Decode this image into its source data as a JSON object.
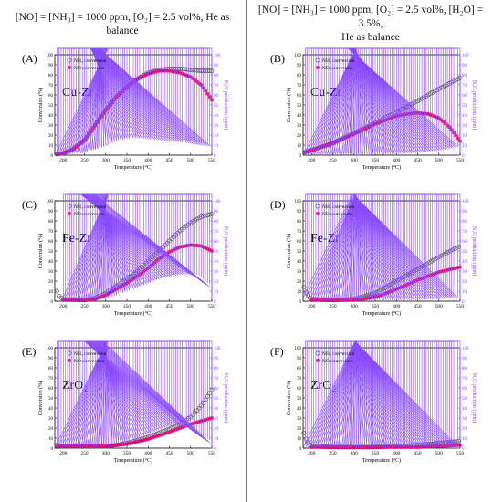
{
  "header": {
    "left": "[NO] = [NH₃] = 1000 ppm, [O₂] = 2.5 vol%, He as balance",
    "right_line1": "[NO] = [NH₃] = 1000 ppm, [O₂] = 2.5 vol%, [H₂O] = 3.5%,",
    "right_line2": "He as balance"
  },
  "axes_text": {
    "xlabel": "Temperature (°C)",
    "ylabel_left": "Conversion (%)",
    "ylabel_right": "N₂O production (ppm)"
  },
  "colors": {
    "nh3": "#555555",
    "no": "#e0007a",
    "n2o": "#8a4bff"
  },
  "chart_data": [
    {
      "type": "scatter",
      "panel": "(A)",
      "catalyst": "Cu-Zr",
      "xlim": [
        180,
        550
      ],
      "ylim": [
        0,
        100
      ],
      "y2lim": [
        0,
        100
      ],
      "xticks": [
        200,
        250,
        300,
        350,
        400,
        450,
        500,
        550
      ],
      "legend": [
        "NH₃ conversion",
        "NO conversion"
      ],
      "series": [
        {
          "name": "NH₃ conversion",
          "axis": "left",
          "marker": "open-circle",
          "x": [
            185,
            200,
            220,
            250,
            275,
            300,
            325,
            350,
            375,
            400,
            425,
            450,
            475,
            500,
            525,
            550
          ],
          "y": [
            1,
            2,
            5,
            15,
            30,
            45,
            58,
            68,
            76,
            82,
            85,
            86,
            86,
            85,
            84,
            84
          ]
        },
        {
          "name": "NO conversion",
          "axis": "left",
          "marker": "filled-circle",
          "x": [
            185,
            200,
            220,
            250,
            275,
            300,
            325,
            350,
            375,
            400,
            425,
            450,
            475,
            500,
            525,
            550
          ],
          "y": [
            1,
            2,
            5,
            15,
            30,
            45,
            58,
            68,
            76,
            81,
            84,
            84,
            82,
            78,
            70,
            55
          ]
        },
        {
          "name": "",
          "axis": "right",
          "marker": "triangle",
          "x": [
            185,
            200,
            250,
            300,
            325,
            350,
            375,
            400,
            425,
            450,
            475,
            500,
            525,
            550
          ],
          "y": [
            0,
            0,
            2,
            8,
            13,
            16,
            17,
            16,
            15,
            14,
            13,
            12,
            10,
            9
          ]
        }
      ]
    },
    {
      "type": "scatter",
      "panel": "(B)",
      "catalyst": "Cu-Zr",
      "xlim": [
        180,
        550
      ],
      "ylim": [
        0,
        100
      ],
      "y2lim": [
        0,
        100
      ],
      "xticks": [
        200,
        250,
        300,
        350,
        400,
        450,
        500,
        550
      ],
      "legend": [
        "NH₃ conversion",
        "NO conversion"
      ],
      "series": [
        {
          "name": "NH₃ conversion",
          "axis": "left",
          "marker": "open-circle",
          "x": [
            185,
            200,
            250,
            300,
            350,
            400,
            450,
            500,
            550
          ],
          "y": [
            3,
            5,
            12,
            22,
            32,
            43,
            54,
            66,
            77
          ]
        },
        {
          "name": "NO conversion",
          "axis": "left",
          "marker": "filled-circle",
          "x": [
            185,
            200,
            250,
            300,
            350,
            400,
            425,
            450,
            475,
            500,
            525,
            550
          ],
          "y": [
            3,
            5,
            12,
            21,
            31,
            39,
            41,
            42,
            41,
            37,
            28,
            14
          ]
        },
        {
          "name": "",
          "axis": "right",
          "marker": "triangle",
          "x": [
            185,
            200,
            250,
            300,
            350,
            400,
            450,
            500,
            525,
            550
          ],
          "y": [
            0,
            0,
            0,
            0,
            0,
            1,
            2,
            4,
            6,
            8
          ]
        }
      ]
    },
    {
      "type": "scatter",
      "panel": "(C)",
      "catalyst": "Fe-Zr",
      "xlim": [
        180,
        550
      ],
      "ylim": [
        0,
        100
      ],
      "y2lim": [
        0,
        100
      ],
      "xticks": [
        200,
        250,
        300,
        350,
        400,
        450,
        500,
        550
      ],
      "legend": [
        "NH₃ conversion",
        "NO conversion"
      ],
      "series": [
        {
          "name": "NH₃ conversion",
          "axis": "left",
          "marker": "open-circle",
          "x": [
            185,
            190,
            200,
            250,
            275,
            300,
            325,
            350,
            375,
            400,
            425,
            450,
            475,
            500,
            525,
            550
          ],
          "y": [
            10,
            5,
            2,
            1,
            3,
            8,
            15,
            22,
            30,
            40,
            50,
            60,
            70,
            78,
            84,
            87
          ]
        },
        {
          "name": "NO conversion",
          "axis": "left",
          "marker": "filled-circle",
          "x": [
            200,
            250,
            275,
            300,
            325,
            350,
            375,
            400,
            425,
            450,
            475,
            500,
            525,
            550
          ],
          "y": [
            1,
            1,
            2,
            6,
            12,
            18,
            25,
            33,
            42,
            49,
            54,
            56,
            55,
            50
          ]
        },
        {
          "name": "",
          "axis": "right",
          "marker": "triangle",
          "x": [
            200,
            250,
            300,
            325,
            350,
            375,
            400,
            425,
            450,
            475,
            500,
            520,
            535,
            550
          ],
          "y": [
            0,
            0,
            2,
            5,
            9,
            13,
            17,
            21,
            24,
            26,
            27,
            24,
            18,
            14
          ]
        }
      ]
    },
    {
      "type": "scatter",
      "panel": "(D)",
      "catalyst": "Fe-Zr",
      "xlim": [
        180,
        550
      ],
      "ylim": [
        0,
        100
      ],
      "y2lim": [
        0,
        100
      ],
      "xticks": [
        200,
        250,
        300,
        350,
        400,
        450,
        500,
        550
      ],
      "legend": [
        "NH₃ conversion",
        "NO conversion"
      ],
      "series": [
        {
          "name": "NH₃ conversion",
          "axis": "left",
          "marker": "open-circle",
          "x": [
            182,
            188,
            195,
            200,
            250,
            300,
            350,
            400,
            450,
            500,
            550
          ],
          "y": [
            14,
            8,
            4,
            2,
            1,
            2,
            8,
            20,
            32,
            44,
            55
          ]
        },
        {
          "name": "NO conversion",
          "axis": "left",
          "marker": "filled-circle",
          "x": [
            200,
            250,
            300,
            350,
            400,
            450,
            500,
            550
          ],
          "y": [
            1,
            1,
            1,
            4,
            12,
            21,
            29,
            34
          ]
        },
        {
          "name": "",
          "axis": "right",
          "marker": "triangle",
          "x": [
            185,
            200,
            250,
            300,
            350,
            400,
            450,
            500,
            550
          ],
          "y": [
            4,
            1,
            0,
            0,
            1,
            1,
            1,
            2,
            3
          ]
        }
      ]
    },
    {
      "type": "scatter",
      "panel": "(E)",
      "catalyst": "ZrO₂",
      "xlim": [
        180,
        550
      ],
      "ylim": [
        0,
        100
      ],
      "y2lim": [
        0,
        100
      ],
      "xticks": [
        200,
        250,
        300,
        350,
        400,
        450,
        500,
        550
      ],
      "legend": [
        "NH₃ conversion",
        "NO conversion"
      ],
      "series": [
        {
          "name": "NH₃ conversion",
          "axis": "left",
          "marker": "open-circle",
          "x": [
            185,
            200,
            250,
            300,
            325,
            350,
            375,
            400,
            425,
            450,
            475,
            500,
            525,
            550
          ],
          "y": [
            3,
            2,
            2,
            2,
            3,
            5,
            8,
            11,
            15,
            19,
            24,
            31,
            42,
            58
          ]
        },
        {
          "name": "NO conversion",
          "axis": "left",
          "marker": "filled-circle",
          "x": [
            185,
            200,
            250,
            300,
            350,
            400,
            450,
            500,
            550
          ],
          "y": [
            2,
            2,
            2,
            2,
            4,
            9,
            16,
            24,
            30
          ]
        },
        {
          "name": "",
          "axis": "right",
          "marker": "triangle",
          "x": [
            185,
            200,
            250,
            300,
            350,
            400,
            450,
            475,
            500,
            525,
            550
          ],
          "y": [
            1,
            1,
            1,
            1,
            5,
            13,
            21,
            23,
            20,
            12,
            5
          ]
        }
      ]
    },
    {
      "type": "scatter",
      "panel": "(F)",
      "catalyst": "ZrO₂",
      "xlim": [
        180,
        550
      ],
      "ylim": [
        0,
        100
      ],
      "y2lim": [
        0,
        100
      ],
      "xticks": [
        200,
        250,
        300,
        350,
        400,
        450,
        500,
        550
      ],
      "legend": [
        "NH₃ conversion",
        "NO conversion"
      ],
      "series": [
        {
          "name": "NH₃ conversion",
          "axis": "left",
          "marker": "open-circle",
          "x": [
            182,
            188,
            195,
            200,
            250,
            300,
            350,
            400,
            450,
            500,
            550
          ],
          "y": [
            15,
            8,
            4,
            2,
            1,
            1,
            1,
            2,
            3,
            5,
            7
          ]
        },
        {
          "name": "NO conversion",
          "axis": "left",
          "marker": "filled-circle",
          "x": [
            200,
            250,
            300,
            350,
            400,
            450,
            500,
            550
          ],
          "y": [
            1,
            1,
            1,
            1,
            1,
            1,
            2,
            3
          ]
        },
        {
          "name": "",
          "axis": "right",
          "marker": "triangle",
          "x": [
            185,
            200,
            250,
            300,
            350,
            400,
            450,
            500,
            550
          ],
          "y": [
            1,
            0,
            0,
            0,
            0,
            0,
            0,
            1,
            1
          ]
        }
      ]
    }
  ]
}
